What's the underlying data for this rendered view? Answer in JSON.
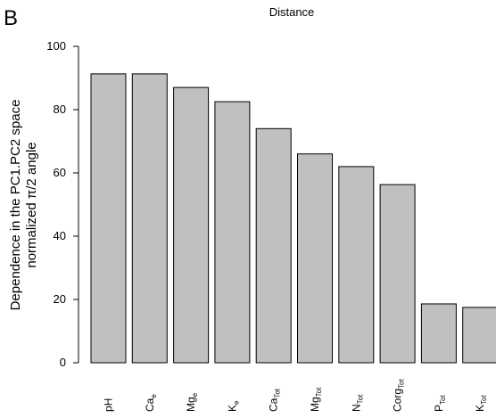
{
  "chart_data": {
    "type": "bar",
    "panel": "B",
    "title": "Distance",
    "ylabel": [
      "Dependence in the PC1.PC2 space",
      "normalized π/2 angle"
    ],
    "categories": [
      [
        "pH"
      ],
      [
        "Ca",
        "e"
      ],
      [
        "Mg",
        "e"
      ],
      [
        "K",
        "e"
      ],
      [
        "Ca",
        "Tot"
      ],
      [
        "Mg",
        "Tot"
      ],
      [
        "N",
        "Tot"
      ],
      [
        "Corg",
        "Tot"
      ],
      [
        "P",
        "Tot"
      ],
      [
        "K",
        "Tot"
      ]
    ],
    "values": [
      91.3,
      91.3,
      87,
      82.5,
      74,
      66,
      62,
      56.3,
      18.6,
      17.5
    ],
    "color": "#c0c0c0",
    "ylim": [
      0,
      100
    ],
    "yticks": [
      0,
      20,
      40,
      60,
      80,
      100
    ]
  }
}
